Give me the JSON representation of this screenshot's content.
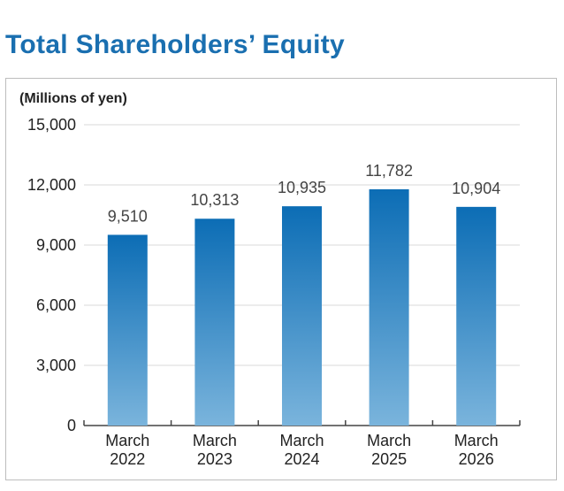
{
  "title": "Total Shareholders’ Equity",
  "unit_label": "(Millions of yen)",
  "colors": {
    "title": "#1a6fb0",
    "bar_top": "#0c6db5",
    "bar_bottom": "#7ab4dc",
    "grid": "#d9d9d9",
    "axis": "#444444"
  },
  "chart_data": {
    "type": "bar",
    "title": "Total Shareholders’ Equity",
    "ylabel": "(Millions of yen)",
    "categories": [
      [
        "March",
        "2022"
      ],
      [
        "March",
        "2023"
      ],
      [
        "March",
        "2024"
      ],
      [
        "March",
        "2025"
      ],
      [
        "March",
        "2026"
      ]
    ],
    "values": [
      9510,
      10313,
      10935,
      11782,
      10904
    ],
    "data_labels": [
      "9,510",
      "10,313",
      "10,935",
      "11,782",
      "10,904"
    ],
    "ylim": [
      0,
      15000
    ],
    "yticks": [
      0,
      3000,
      6000,
      9000,
      12000,
      15000
    ],
    "ytick_labels": [
      "0",
      "3,000",
      "6,000",
      "9,000",
      "12,000",
      "15,000"
    ],
    "grid": true,
    "legend": "none"
  }
}
